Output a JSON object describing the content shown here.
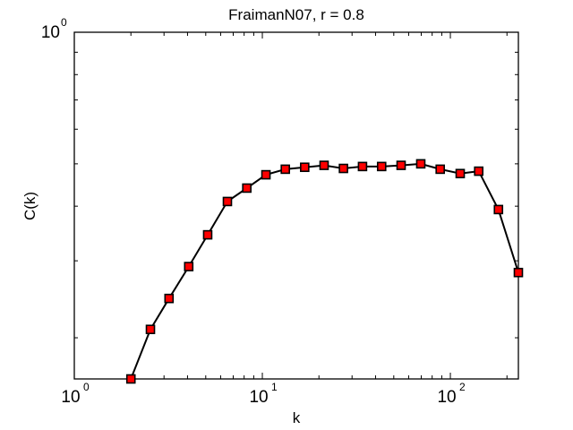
{
  "chart_data": {
    "type": "line",
    "title": "FraimanN07, r = 0.8",
    "xlabel": "k",
    "ylabel": "C(k)",
    "xscale": "log",
    "yscale": "log",
    "xlim": [
      1,
      230
    ],
    "ylim": [
      0.161,
      1
    ],
    "grid": false,
    "legend": null,
    "x_tick_labels": [
      {
        "base": "10",
        "exp": "0",
        "value": 1
      },
      {
        "base": "10",
        "exp": "1",
        "value": 10
      },
      {
        "base": "10",
        "exp": "2",
        "value": 100
      }
    ],
    "y_tick_labels": [
      {
        "base": "10",
        "exp": "0",
        "value": 1
      }
    ],
    "series": [
      {
        "name": "C(k)",
        "line_color": "#000000",
        "marker": "square",
        "marker_face": "#ff0000",
        "marker_edge": "#000000",
        "x": [
          2.0,
          2.54,
          3.19,
          4.06,
          5.12,
          6.52,
          8.27,
          10.45,
          13.25,
          16.8,
          21.3,
          27.0,
          34.1,
          43.1,
          54.7,
          69.6,
          88.3,
          112.8,
          141.5,
          180.2,
          230
        ],
        "y": [
          0.161,
          0.209,
          0.246,
          0.291,
          0.344,
          0.41,
          0.44,
          0.472,
          0.486,
          0.491,
          0.496,
          0.488,
          0.493,
          0.493,
          0.496,
          0.5,
          0.486,
          0.475,
          0.481,
          0.393,
          0.282
        ]
      }
    ]
  }
}
